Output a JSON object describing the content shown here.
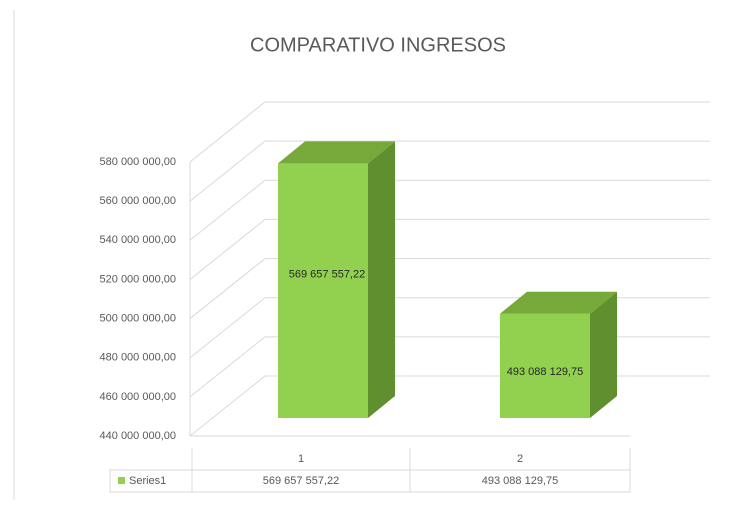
{
  "chart_data": {
    "type": "bar",
    "title": "COMPARATIVO INGRESOS",
    "categories": [
      "1",
      "2"
    ],
    "series": [
      {
        "name": "Series1",
        "color": "#92d050",
        "values": [
          569657557.22,
          493088129.75
        ],
        "value_labels": [
          "569 657 557,22",
          "493 088 129,75"
        ]
      }
    ],
    "ylim": [
      440000000,
      580000000
    ],
    "yticks": [
      {
        "value": 440000000,
        "label": "440 000 000,00"
      },
      {
        "value": 460000000,
        "label": "460 000 000,00"
      },
      {
        "value": 480000000,
        "label": "480 000 000,00"
      },
      {
        "value": 500000000,
        "label": "500 000 000,00"
      },
      {
        "value": 520000000,
        "label": "520 000 000,00"
      },
      {
        "value": 540000000,
        "label": "540 000 000,00"
      },
      {
        "value": 560000000,
        "label": "560 000 000,00"
      },
      {
        "value": 580000000,
        "label": "580 000 000,00"
      }
    ],
    "grid": true,
    "data_table": true
  }
}
